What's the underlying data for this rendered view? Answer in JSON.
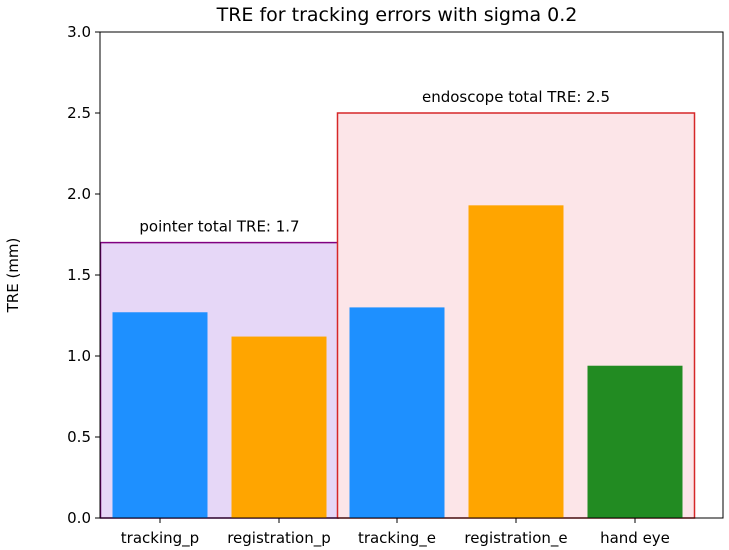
{
  "chart_data": {
    "type": "bar",
    "title": "TRE for tracking errors with sigma 0.2",
    "xlabel": "",
    "ylabel": "TRE (mm)",
    "ylim": [
      0,
      3.0
    ],
    "yticks": [
      "0.0",
      "0.5",
      "1.0",
      "1.5",
      "2.0",
      "2.5",
      "3.0"
    ],
    "grid": false,
    "categories": [
      "tracking_p",
      "registration_p",
      "tracking_e",
      "registration_e",
      "hand eye"
    ],
    "values": [
      1.27,
      1.12,
      1.3,
      1.93,
      0.94
    ],
    "bar_colors": [
      "#1e90ff",
      "#ffa500",
      "#1e90ff",
      "#ffa500",
      "#228b22"
    ],
    "groups": [
      {
        "label": "pointer total TRE: 1.7",
        "value": 1.7,
        "start_index": 0,
        "end_index": 1,
        "fill": "#e6d7f7",
        "stroke": "#800080"
      },
      {
        "label": "endoscope total TRE: 2.5",
        "value": 2.5,
        "start_index": 2,
        "end_index": 4,
        "fill": "#fce5e8",
        "stroke": "#d62728"
      }
    ]
  }
}
